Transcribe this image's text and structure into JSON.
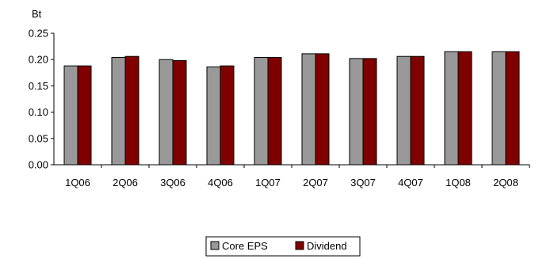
{
  "chart_data": {
    "type": "bar",
    "unit_label": "Bt",
    "categories": [
      "1Q06",
      "2Q06",
      "3Q06",
      "4Q06",
      "1Q07",
      "2Q07",
      "3Q07",
      "4Q07",
      "1Q08",
      "2Q08"
    ],
    "series": [
      {
        "name": "Core EPS",
        "color": "#999999",
        "values": [
          0.188,
          0.204,
          0.2,
          0.186,
          0.204,
          0.211,
          0.202,
          0.206,
          0.215,
          0.215
        ]
      },
      {
        "name": "Dividend",
        "color": "#800000",
        "values": [
          0.188,
          0.206,
          0.198,
          0.188,
          0.204,
          0.211,
          0.202,
          0.206,
          0.215,
          0.215
        ]
      }
    ],
    "ylim": [
      0,
      0.25
    ],
    "y_ticks": [
      "0.00",
      "0.05",
      "0.10",
      "0.15",
      "0.20",
      "0.25"
    ],
    "grid": false,
    "legend_position": "bottom-center"
  }
}
